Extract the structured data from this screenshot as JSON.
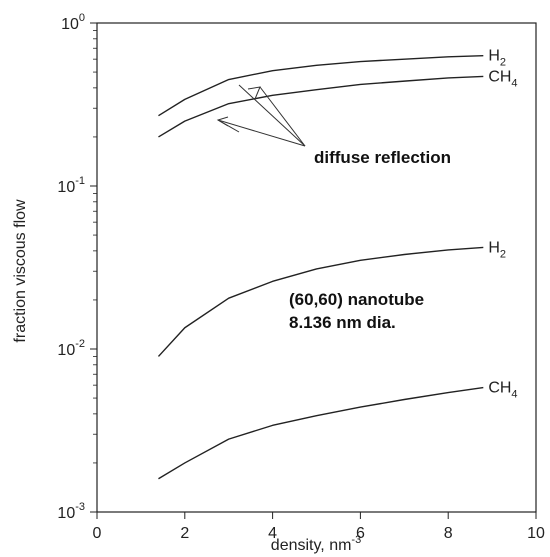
{
  "chart_data": {
    "type": "line",
    "xlabel": "density, nm",
    "xlabel_superscript": "-3",
    "ylabel": "fraction viscous flow",
    "xlim": [
      0,
      10
    ],
    "ylim": [
      0.001,
      1
    ],
    "yscale": "log",
    "grid": false,
    "x_ticks": [
      {
        "value": 0,
        "label": "0"
      },
      {
        "value": 2,
        "label": "2"
      },
      {
        "value": 4,
        "label": "4"
      },
      {
        "value": 6,
        "label": "6"
      },
      {
        "value": 8,
        "label": "8"
      },
      {
        "value": 10,
        "label": "10"
      }
    ],
    "y_ticks": [
      {
        "value": 1,
        "base": "10",
        "exp": "0"
      },
      {
        "value": 0.1,
        "base": "10",
        "exp": "-1"
      },
      {
        "value": 0.01,
        "base": "10",
        "exp": "-2"
      },
      {
        "value": 0.001,
        "base": "10",
        "exp": "-3"
      }
    ],
    "series": [
      {
        "label_base": "H",
        "label_sub": "2",
        "x": [
          1.4,
          2.0,
          3.0,
          4.0,
          5.0,
          6.0,
          7.0,
          8.0,
          8.8
        ],
        "y": [
          0.27,
          0.34,
          0.45,
          0.51,
          0.55,
          0.58,
          0.6,
          0.62,
          0.63
        ]
      },
      {
        "label_base": "CH",
        "label_sub": "4",
        "x": [
          1.4,
          2.0,
          3.0,
          4.0,
          5.0,
          6.0,
          7.0,
          8.0,
          8.8
        ],
        "y": [
          0.2,
          0.25,
          0.32,
          0.36,
          0.39,
          0.42,
          0.44,
          0.46,
          0.47
        ]
      },
      {
        "label_base": "H",
        "label_sub": "2",
        "x": [
          1.4,
          2.0,
          3.0,
          4.0,
          5.0,
          6.0,
          7.0,
          8.0,
          8.8
        ],
        "y": [
          0.009,
          0.0135,
          0.0205,
          0.026,
          0.031,
          0.035,
          0.038,
          0.0405,
          0.042
        ]
      },
      {
        "label_base": "CH",
        "label_sub": "4",
        "x": [
          1.4,
          2.0,
          3.0,
          4.0,
          5.0,
          6.0,
          7.0,
          8.0,
          8.8
        ],
        "y": [
          0.0016,
          0.002,
          0.0028,
          0.0034,
          0.0039,
          0.0044,
          0.0049,
          0.0054,
          0.0058
        ]
      }
    ],
    "annotations": {
      "diffuse_reflection": "diffuse reflection",
      "tube_line1": "(60,60) nanotube",
      "tube_line2": "8.136 nm dia."
    }
  }
}
